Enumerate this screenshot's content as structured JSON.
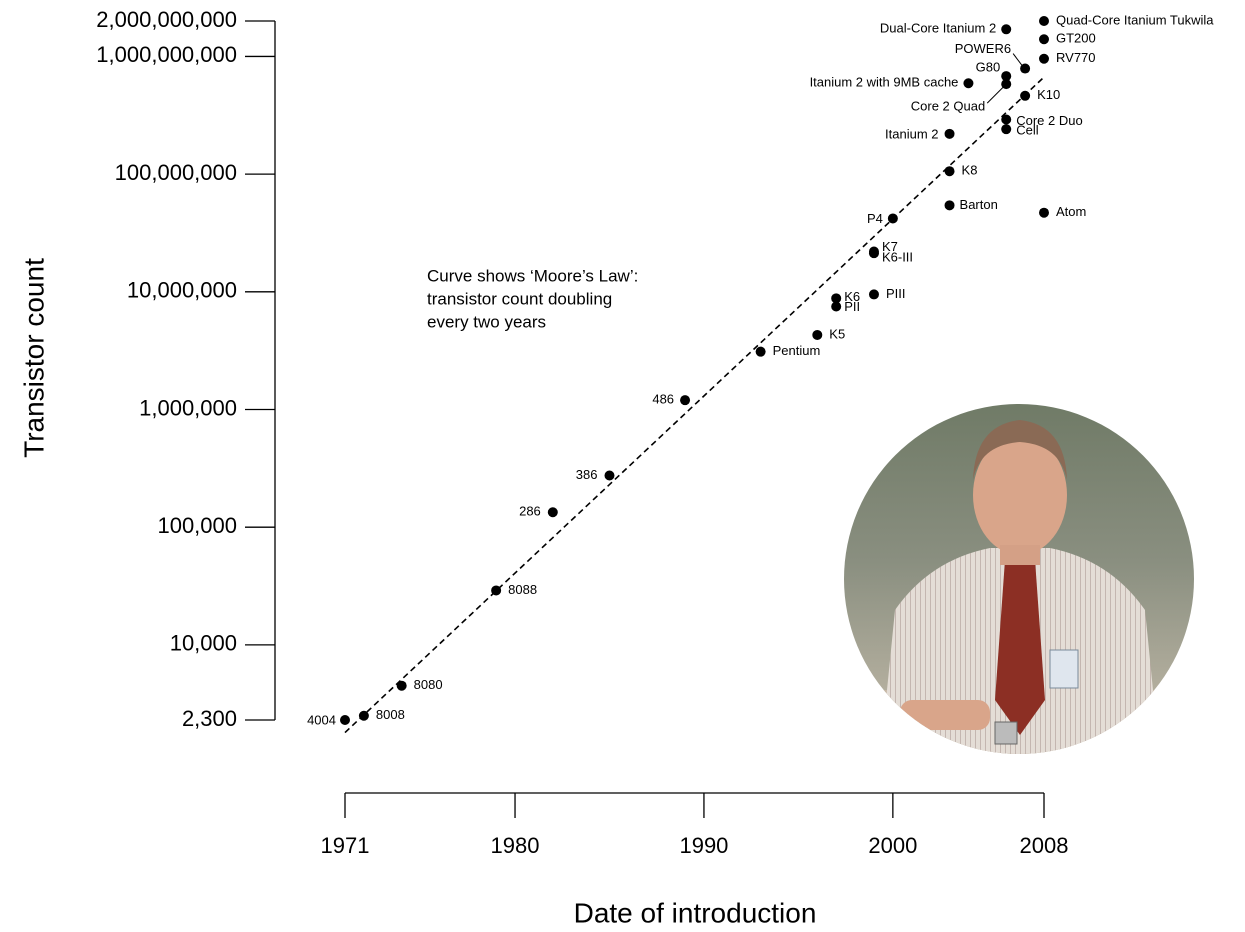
{
  "chart_data": {
    "type": "scatter",
    "x_label": "Date of introduction",
    "y_label": "Transistor count",
    "annotation": [
      "Curve shows ‘Moore’s Law’:",
      "transistor count doubling",
      "every two years"
    ],
    "yscale": "log",
    "color": "#000000",
    "xlim": [
      1971,
      2008
    ],
    "ylim": [
      2300,
      2000000000
    ],
    "xticks": [
      1971,
      1980,
      1990,
      2000,
      2008
    ],
    "yticks": [
      {
        "value": 2300,
        "label": "2,300"
      },
      {
        "value": 10000,
        "label": "10,000"
      },
      {
        "value": 100000,
        "label": "100,000"
      },
      {
        "value": 1000000,
        "label": "1,000,000"
      },
      {
        "value": 10000000,
        "label": "10,000,000"
      },
      {
        "value": 100000000,
        "label": "100,000,000"
      },
      {
        "value": 1000000000,
        "label": "1,000,000,000"
      },
      {
        "value": 2000000000,
        "label": "2,000,000,000"
      }
    ],
    "point_labels": [
      "4004",
      "8008",
      "8080",
      "8088",
      "286",
      "386",
      "486",
      "Pentium",
      "K5",
      "K6",
      "PII",
      "PIII",
      "K6-III",
      "K7",
      "P4",
      "Barton",
      "K8",
      "Itanium 2",
      "Itanium 2 with 9MB cache",
      "Cell",
      "Core 2 Duo",
      "Core 2 Quad",
      "G80",
      "POWER6",
      "K10",
      "Dual-Core Itanium 2",
      "Quad-Core Itanium Tukwila",
      "GT200",
      "RV770",
      "Atom"
    ],
    "x": [
      1971,
      1972,
      1974,
      1979,
      1982,
      1985,
      1989,
      1993,
      1996,
      1997,
      1997,
      1999,
      1999,
      1999,
      2000,
      2003,
      2003,
      2003,
      2004,
      2006,
      2006,
      2006,
      2006,
      2007,
      2007,
      2006,
      2008,
      2008,
      2008,
      2008
    ],
    "values": [
      2300,
      2500,
      4500,
      29000,
      134000,
      275000,
      1200000,
      3100000,
      4300000,
      8800000,
      7500000,
      9500000,
      21300000,
      22000000,
      42000000,
      54300000,
      105900000,
      220000000,
      592000000,
      241000000,
      291000000,
      582000000,
      681000000,
      789000000,
      463000000,
      1700000000,
      2000000000,
      1400000000,
      956000000,
      47000000
    ],
    "trend": {
      "x": [
        1971,
        2008
      ],
      "values": [
        1800,
        667000000
      ]
    }
  }
}
